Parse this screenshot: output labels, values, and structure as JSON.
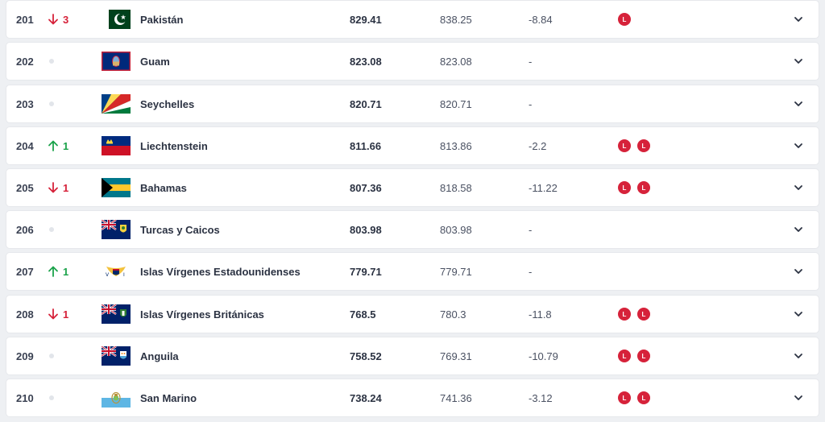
{
  "rows": [
    {
      "rank": "201",
      "move": {
        "dir": "down",
        "value": "3"
      },
      "flag": "pakistan-flag-icon",
      "country": "Pakistán",
      "points": "829.41",
      "previous": "838.25",
      "diff": "-8.84",
      "form": [
        "L"
      ]
    },
    {
      "rank": "202",
      "move": {
        "dir": "none",
        "value": ""
      },
      "flag": "guam-flag-icon",
      "country": "Guam",
      "points": "823.08",
      "previous": "823.08",
      "diff": "-",
      "form": []
    },
    {
      "rank": "203",
      "move": {
        "dir": "none",
        "value": ""
      },
      "flag": "seychelles-flag-icon",
      "country": "Seychelles",
      "points": "820.71",
      "previous": "820.71",
      "diff": "-",
      "form": []
    },
    {
      "rank": "204",
      "move": {
        "dir": "up",
        "value": "1"
      },
      "flag": "liechtenstein-flag-icon",
      "country": "Liechtenstein",
      "points": "811.66",
      "previous": "813.86",
      "diff": "-2.2",
      "form": [
        "L",
        "L"
      ]
    },
    {
      "rank": "205",
      "move": {
        "dir": "down",
        "value": "1"
      },
      "flag": "bahamas-flag-icon",
      "country": "Bahamas",
      "points": "807.36",
      "previous": "818.58",
      "diff": "-11.22",
      "form": [
        "L",
        "L"
      ]
    },
    {
      "rank": "206",
      "move": {
        "dir": "none",
        "value": ""
      },
      "flag": "turks-caicos-flag-icon",
      "country": "Turcas y Caicos",
      "points": "803.98",
      "previous": "803.98",
      "diff": "-",
      "form": []
    },
    {
      "rank": "207",
      "move": {
        "dir": "up",
        "value": "1"
      },
      "flag": "us-virgin-islands-flag-icon",
      "country": "Islas Vírgenes Estadounidenses",
      "points": "779.71",
      "previous": "779.71",
      "diff": "-",
      "form": []
    },
    {
      "rank": "208",
      "move": {
        "dir": "down",
        "value": "1"
      },
      "flag": "british-virgin-islands-flag-icon",
      "country": "Islas Vírgenes Británicas",
      "points": "768.5",
      "previous": "780.3",
      "diff": "-11.8",
      "form": [
        "L",
        "L"
      ]
    },
    {
      "rank": "209",
      "move": {
        "dir": "none",
        "value": ""
      },
      "flag": "anguilla-flag-icon",
      "country": "Anguila",
      "points": "758.52",
      "previous": "769.31",
      "diff": "-10.79",
      "form": [
        "L",
        "L"
      ]
    },
    {
      "rank": "210",
      "move": {
        "dir": "none",
        "value": ""
      },
      "flag": "san-marino-flag-icon",
      "country": "San Marino",
      "points": "738.24",
      "previous": "741.36",
      "diff": "-3.12",
      "form": [
        "L",
        "L"
      ]
    }
  ],
  "colors": {
    "down": "#d6223a",
    "up": "#1ca34b",
    "loss_badge": "#d6223a"
  }
}
